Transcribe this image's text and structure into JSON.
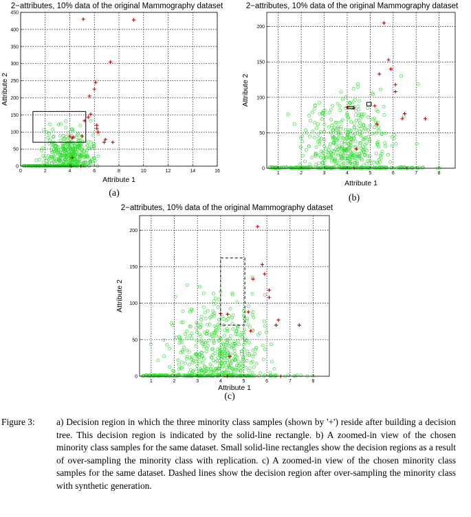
{
  "figure": {
    "caption_label": "Figure 3:",
    "caption_text": "a) Decision region in which the three minority class samples (shown by '+') reside after building a decision tree. This decision region is indicated by the solid-line rectangle. b) A zoomed-in view of the chosen minority class samples for the same dataset. Small solid-line rectangles show the decision regions as a result of over-sampling the minority class with replication. c) A zoomed-in view of the chosen minority class samples for the same dataset. Dashed lines show the decision region after over-sampling the minority class with synthetic generation."
  },
  "colors": {
    "majority": "#33dd33",
    "minority": "#cc0000",
    "grid": "#000000"
  },
  "chart_data": [
    {
      "id": "a",
      "type": "scatter",
      "sublabel": "(a)",
      "title": "2−attributes, 10% data of the original Mammography dataset",
      "xlabel": "Attribute 1",
      "ylabel": "Attribute 2",
      "xlim": [
        0,
        16
      ],
      "ylim": [
        0,
        450
      ],
      "xticks": [
        0,
        2,
        4,
        6,
        8,
        10,
        12,
        14,
        16
      ],
      "yticks": [
        0,
        50,
        100,
        150,
        200,
        250,
        300,
        350,
        400,
        450
      ],
      "grid": true,
      "majority_cluster": {
        "x_center": 4.0,
        "x_spread": 1.1,
        "y_center": 30,
        "y_spread": 28,
        "count": 340,
        "row_count": 160,
        "x_range": [
          0.2,
          6.5
        ]
      },
      "minority": [
        [
          5.1,
          430
        ],
        [
          9.2,
          428
        ],
        [
          7.3,
          305
        ],
        [
          6.1,
          245
        ],
        [
          6.0,
          225
        ],
        [
          5.6,
          205
        ],
        [
          5.7,
          152
        ],
        [
          5.5,
          143
        ],
        [
          5.2,
          133
        ],
        [
          6.2,
          120
        ],
        [
          6.2,
          110
        ],
        [
          6.3,
          100
        ],
        [
          6.9,
          78
        ],
        [
          6.8,
          70
        ],
        [
          7.5,
          70
        ],
        [
          4.0,
          88
        ],
        [
          4.3,
          85
        ],
        [
          4.2,
          82
        ],
        [
          5.0,
          88
        ],
        [
          4.2,
          25
        ],
        [
          4.1,
          0
        ],
        [
          4.9,
          0
        ]
      ],
      "rects": [
        {
          "x0": 1.0,
          "x1": 5.3,
          "y0": 70,
          "y1": 160,
          "style": "solid"
        }
      ]
    },
    {
      "id": "b",
      "type": "scatter",
      "sublabel": "(b)",
      "title": "2−attributes, 10% data of the original Mammography dataset",
      "xlabel": "Attribute 1",
      "ylabel": "Attribute 2",
      "xlim": [
        0.5,
        8.7
      ],
      "ylim": [
        0,
        220
      ],
      "xticks": [
        1,
        2,
        3,
        4,
        5,
        6,
        7,
        8
      ],
      "yticks": [
        0,
        50,
        100,
        150,
        200
      ],
      "grid": true,
      "majority_cluster": {
        "x_center": 4.0,
        "x_spread": 1.0,
        "y_center": 30,
        "y_spread": 28,
        "count": 380,
        "row_count": 190,
        "x_range": [
          0.6,
          8.5
        ]
      },
      "minority": [
        [
          5.6,
          205
        ],
        [
          5.8,
          153
        ],
        [
          5.9,
          140
        ],
        [
          5.4,
          133
        ],
        [
          6.1,
          118
        ],
        [
          6.1,
          108
        ],
        [
          5.2,
          88
        ],
        [
          4.0,
          86
        ],
        [
          4.3,
          85
        ],
        [
          6.5,
          77
        ],
        [
          6.4,
          70
        ],
        [
          7.4,
          70
        ],
        [
          5.3,
          62
        ],
        [
          4.4,
          27
        ],
        [
          4.3,
          0
        ],
        [
          6.6,
          0
        ]
      ],
      "rects": [
        {
          "x0": 4.0,
          "x1": 4.3,
          "y0": 84,
          "y1": 87,
          "style": "solid"
        },
        {
          "x0": 4.85,
          "x1": 5.05,
          "y0": 88,
          "y1": 93,
          "style": "solid"
        }
      ]
    },
    {
      "id": "c",
      "type": "scatter",
      "sublabel": "(c)",
      "title": "2−attributes, 10% data of the original Mammography dataset",
      "xlabel": "Attribute 1",
      "ylabel": "Attribute 2",
      "xlim": [
        0.5,
        8.7
      ],
      "ylim": [
        0,
        220
      ],
      "xticks": [
        1,
        2,
        3,
        4,
        5,
        6,
        7,
        8
      ],
      "yticks": [
        0,
        50,
        100,
        150,
        200
      ],
      "grid": true,
      "majority_cluster": {
        "x_center": 4.0,
        "x_spread": 1.0,
        "y_center": 30,
        "y_spread": 28,
        "count": 400,
        "row_count": 190,
        "x_range": [
          0.6,
          8.5
        ]
      },
      "minority": [
        [
          5.6,
          205
        ],
        [
          5.8,
          153
        ],
        [
          5.9,
          140
        ],
        [
          5.4,
          133
        ],
        [
          6.1,
          118
        ],
        [
          6.1,
          108
        ],
        [
          5.2,
          88
        ],
        [
          4.0,
          86
        ],
        [
          4.3,
          85
        ],
        [
          6.5,
          77
        ],
        [
          6.4,
          70
        ],
        [
          7.4,
          70
        ],
        [
          5.3,
          62
        ],
        [
          4.4,
          27
        ],
        [
          4.3,
          0
        ],
        [
          6.6,
          0
        ]
      ],
      "rects": [
        {
          "x0": 4.0,
          "x1": 5.05,
          "y0": 70,
          "y1": 162,
          "style": "dashed"
        }
      ]
    }
  ]
}
